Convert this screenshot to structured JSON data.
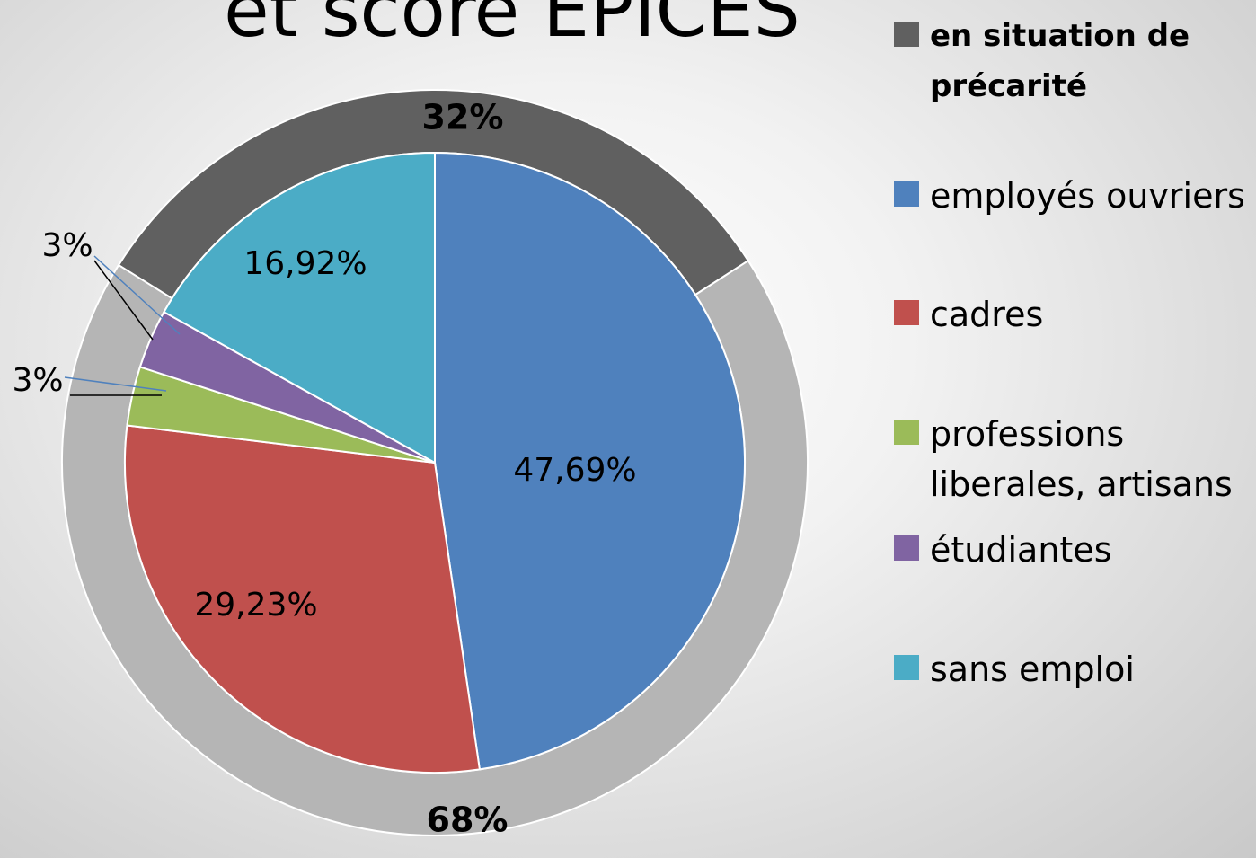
{
  "chart_data": {
    "type": "pie",
    "title": "et score EPICES",
    "rings": [
      {
        "categories": [
          "en situation de précarité",
          null
        ],
        "values": [
          32,
          68
        ],
        "value_labels": [
          "32%",
          "68%"
        ],
        "colors": [
          "#606060",
          "#b5b5b5"
        ]
      },
      {
        "categories": [
          "employés ouvriers",
          "cadres",
          "professions liberales, artisans",
          "étudiantes",
          "sans emploi"
        ],
        "values": [
          47.69,
          29.23,
          3.08,
          3.08,
          16.92
        ],
        "value_labels": [
          "47,69%",
          "29,23%",
          "3%",
          "3%",
          "16,92%"
        ],
        "colors": [
          "#4f81bd",
          "#c0504d",
          "#9bbb59",
          "#8064a2",
          "#4bacc6"
        ]
      }
    ]
  }
}
